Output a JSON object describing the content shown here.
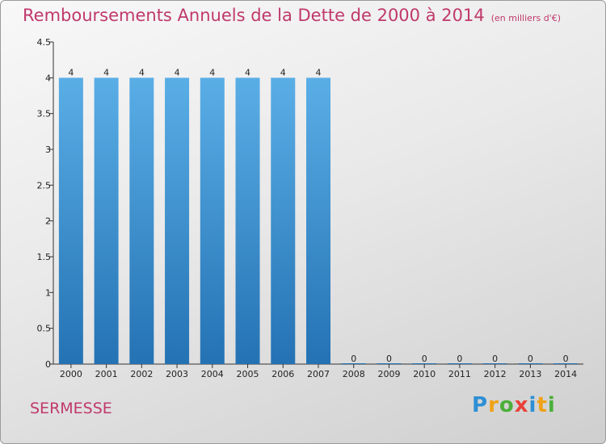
{
  "title": "Remboursements Annuels de la Dette de 2000 à 2014",
  "subtitle": "(en milliers d'€)",
  "commune": "SERMESSE",
  "logo": {
    "letters": [
      "P",
      "r",
      "o",
      "x",
      "i",
      "t",
      "i"
    ],
    "colors": [
      "#2d8fd5",
      "#f0a215",
      "#4caf3a",
      "#e8413b",
      "#2d8fd5",
      "#f0a215",
      "#4caf3a"
    ]
  },
  "colors": {
    "accent": "#c0396b",
    "bar_top": "#5aaee6",
    "bar_bottom": "#2472b4"
  },
  "chart_data": {
    "type": "bar",
    "categories": [
      "2000",
      "2001",
      "2002",
      "2003",
      "2004",
      "2005",
      "2006",
      "2007",
      "2008",
      "2009",
      "2010",
      "2011",
      "2012",
      "2013",
      "2014"
    ],
    "values": [
      4,
      4,
      4,
      4,
      4,
      4,
      4,
      4,
      0,
      0,
      0,
      0,
      0,
      0,
      0
    ],
    "data_labels": [
      "4",
      "4",
      "4",
      "4",
      "4",
      "4",
      "4",
      "4",
      "0",
      "0",
      "0",
      "0",
      "0",
      "0",
      "0"
    ],
    "yticks": [
      "0",
      "0.5",
      "1",
      "1.5",
      "2",
      "2.5",
      "3",
      "3.5",
      "4",
      "4.5"
    ],
    "ylim": [
      0,
      4.5
    ],
    "grid": false
  }
}
